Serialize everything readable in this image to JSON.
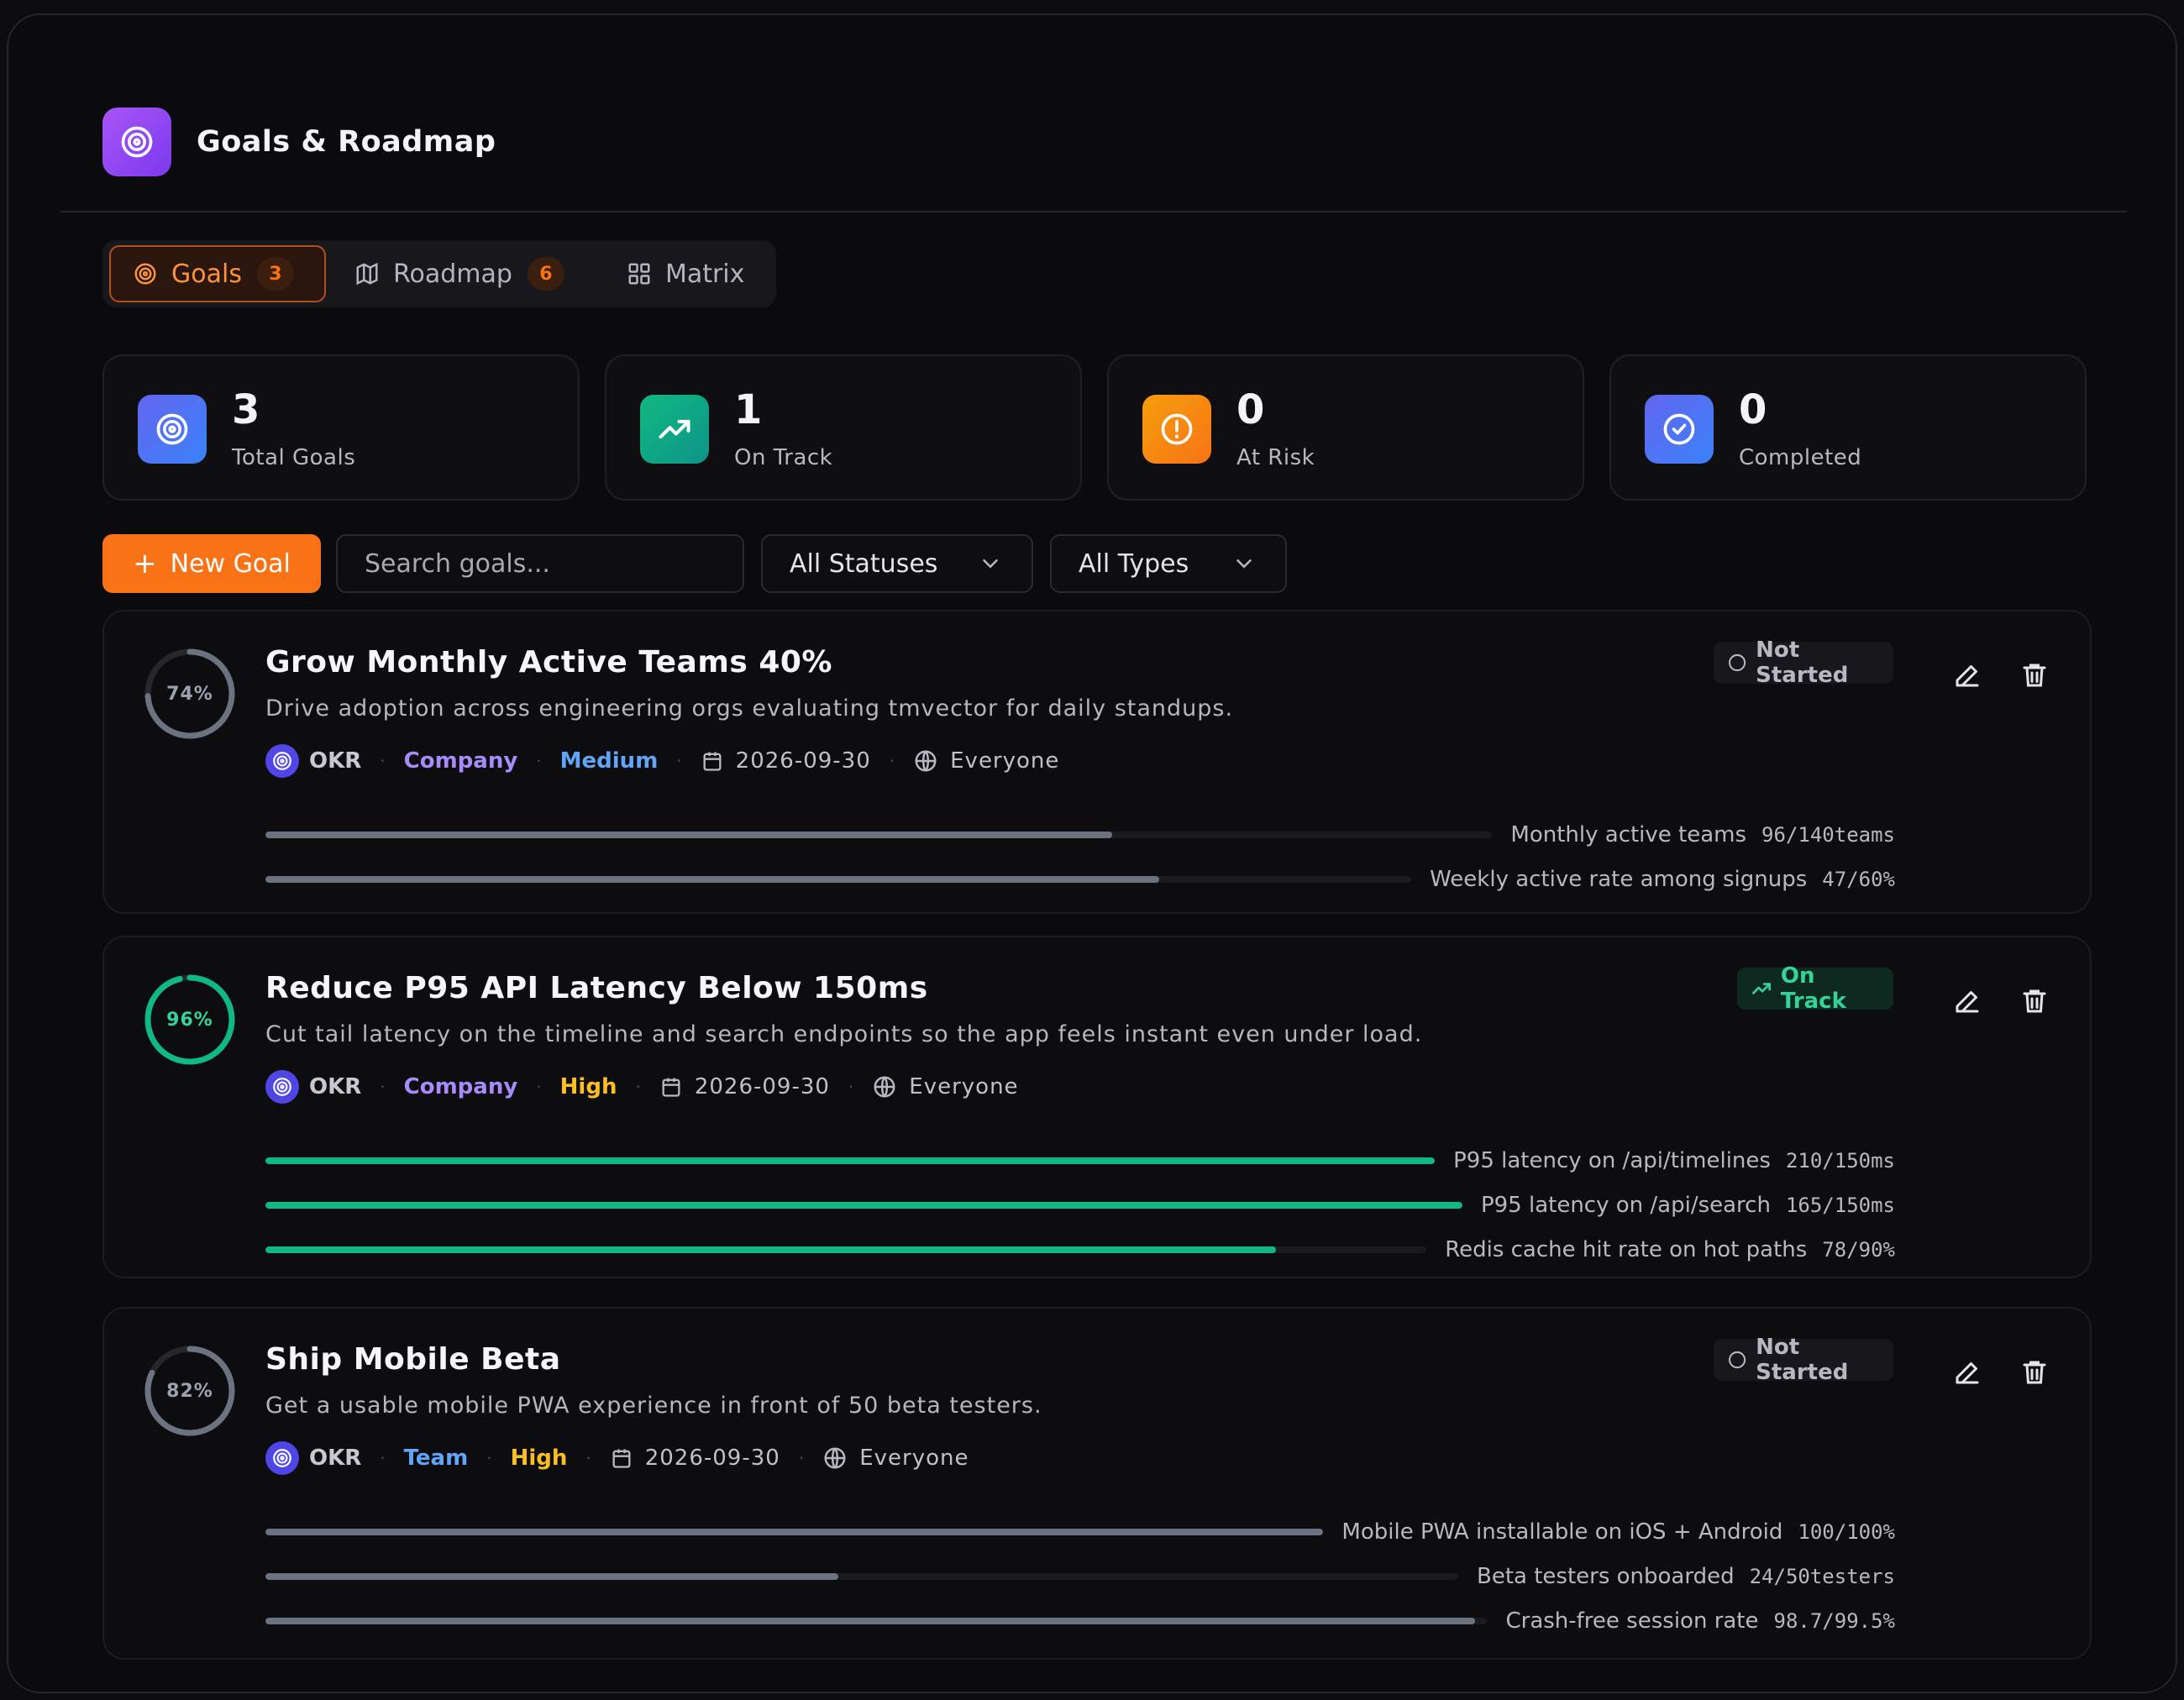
{
  "app": {
    "title": "Goals & Roadmap"
  },
  "tabs": [
    {
      "label": "Goals",
      "count": "3"
    },
    {
      "label": "Roadmap",
      "count": "6"
    },
    {
      "label": "Matrix"
    }
  ],
  "stats": [
    {
      "value": "3",
      "label": "Total Goals"
    },
    {
      "value": "1",
      "label": "On Track"
    },
    {
      "value": "0",
      "label": "At Risk"
    },
    {
      "value": "0",
      "label": "Completed"
    }
  ],
  "toolbar": {
    "new_goal": "New Goal",
    "search_placeholder": "Search goals...",
    "status_filter": "All Statuses",
    "type_filter": "All Types"
  },
  "goals": [
    {
      "progress_label": "74%",
      "progress": 0.74,
      "title": "Grow Monthly Active Teams 40%",
      "description": "Drive adoption across engineering orgs evaluating tmvector for daily standups.",
      "type": "OKR",
      "scope": "Company",
      "priority": "Medium",
      "date": "2026-09-30",
      "visibility": "Everyone",
      "status": "Not Started",
      "key_results": [
        {
          "name": "Monthly active teams",
          "value": "96/140teams",
          "progress": 0.69
        },
        {
          "name": "Weekly active rate among signups",
          "value": "47/60%",
          "progress": 0.78
        }
      ]
    },
    {
      "progress_label": "96%",
      "progress": 0.96,
      "title": "Reduce P95 API Latency Below 150ms",
      "description": "Cut tail latency on the timeline and search endpoints so the app feels instant even under load.",
      "type": "OKR",
      "scope": "Company",
      "priority": "High",
      "date": "2026-09-30",
      "visibility": "Everyone",
      "status": "On Track",
      "key_results": [
        {
          "name": "P95 latency on /api/timelines",
          "value": "210/150ms",
          "progress": 1.0
        },
        {
          "name": "P95 latency on /api/search",
          "value": "165/150ms",
          "progress": 1.0
        },
        {
          "name": "Redis cache hit rate on hot paths",
          "value": "78/90%",
          "progress": 0.87
        }
      ]
    },
    {
      "progress_label": "82%",
      "progress": 0.82,
      "title": "Ship Mobile Beta",
      "description": "Get a usable mobile PWA experience in front of 50 beta testers.",
      "type": "OKR",
      "scope": "Team",
      "priority": "High",
      "date": "2026-09-30",
      "visibility": "Everyone",
      "status": "Not Started",
      "key_results": [
        {
          "name": "Mobile PWA installable on iOS + Android",
          "value": "100/100%",
          "progress": 1.0
        },
        {
          "name": "Beta testers onboarded",
          "value": "24/50testers",
          "progress": 0.48
        },
        {
          "name": "Crash-free session rate",
          "value": "98.7/99.5%",
          "progress": 0.99
        }
      ]
    }
  ],
  "colors": {
    "accent": "#f97316",
    "on_track": "#10b981",
    "neutral_bar": "#6b7280"
  }
}
